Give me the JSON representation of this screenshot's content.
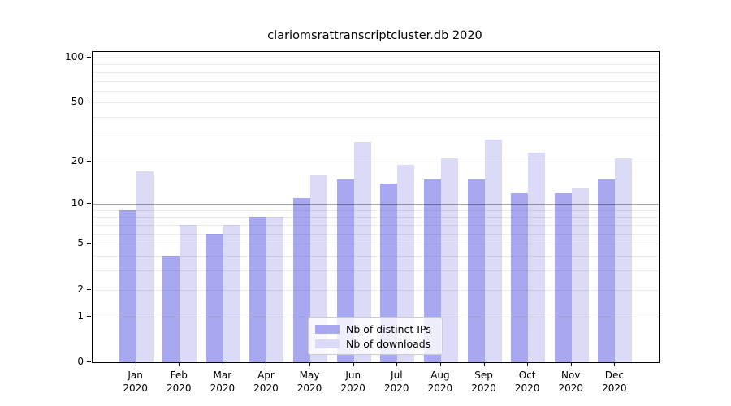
{
  "title": "clariomsrattranscriptcluster.db 2020",
  "chart_data": {
    "type": "bar",
    "title": "clariomsrattranscriptcluster.db 2020",
    "y_scale": "log1p",
    "grid": true,
    "categories": [
      "Jan",
      "Feb",
      "Mar",
      "Apr",
      "May",
      "Jun",
      "Jul",
      "Aug",
      "Sep",
      "Oct",
      "Nov",
      "Dec"
    ],
    "category_year": "2020",
    "series": [
      {
        "name": "Nb of distinct IPs",
        "color": "#a8a8f1",
        "values": [
          9,
          4,
          6,
          8,
          11,
          15,
          14,
          15,
          15,
          12,
          12,
          15
        ]
      },
      {
        "name": "Nb of downloads",
        "color": "#dbdbf8",
        "values": [
          17,
          7,
          7,
          8,
          16,
          27,
          19,
          21,
          28,
          23,
          13,
          21
        ]
      }
    ],
    "yticks": [
      0,
      1,
      2,
      5,
      10,
      20,
      50,
      100
    ],
    "ylim": [
      0,
      109
    ],
    "legend_position": "lower-center"
  },
  "colors": {
    "background": "#ffffff",
    "bar_distinct_ips": "#a8a8f1",
    "bar_downloads": "#dbdbf8",
    "grid_major": "rgba(0,0,0,0.34)",
    "grid_minor": "rgba(0,0,0,0.08)",
    "axis": "#000000",
    "text": "#000000",
    "legend_border": "#cccccc",
    "legend_background": "rgba(255,255,255,0.8)"
  }
}
